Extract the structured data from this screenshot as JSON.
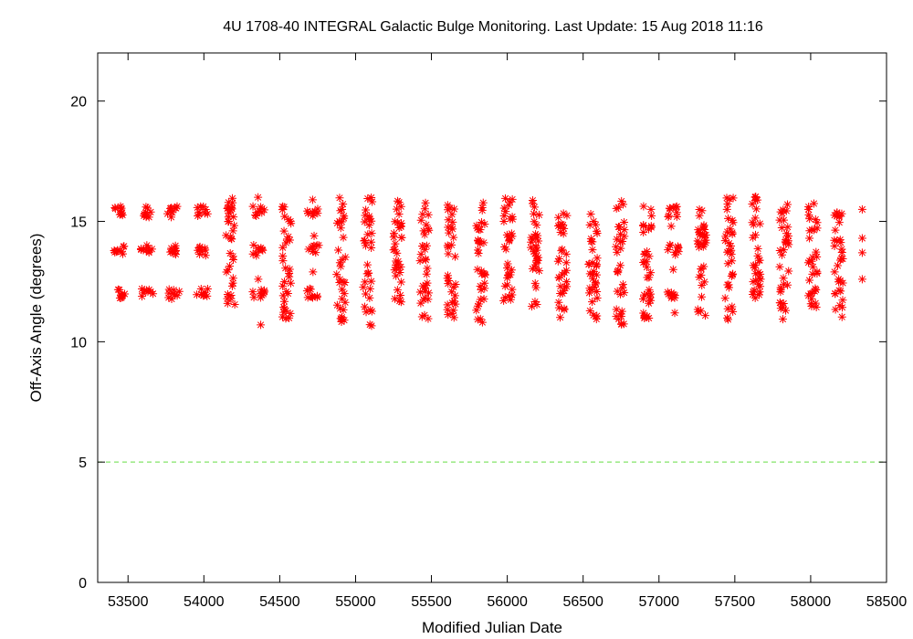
{
  "chart_data": {
    "type": "scatter",
    "title": "4U 1708-40   INTEGRAL Galactic Bulge Monitoring.  Last Update: 15 Aug 2018 11:16",
    "xlabel": "Modified Julian Date",
    "ylabel": "Off-Axis Angle (degrees)",
    "xlim": [
      53300,
      58500
    ],
    "ylim": [
      0,
      22
    ],
    "xticks": [
      53500,
      54000,
      54500,
      55000,
      55500,
      56000,
      56500,
      57000,
      57500,
      58000,
      58500
    ],
    "yticks": [
      0,
      5,
      10,
      15,
      20
    ],
    "grid": false,
    "legend": "none",
    "marker": "asterisk",
    "series_color": "#ff0000",
    "reference_line": {
      "y": 5,
      "color": "#66dd44",
      "style": "dashed"
    },
    "visit_groups": [
      {
        "mjd": 53440,
        "levels": [
          15.4,
          13.8,
          12.0
        ],
        "kind": "raster"
      },
      {
        "mjd": 53625,
        "levels": [
          15.4,
          13.8,
          12.0
        ],
        "kind": "raster"
      },
      {
        "mjd": 53800,
        "levels": [
          15.4,
          13.8,
          12.0
        ],
        "kind": "raster"
      },
      {
        "mjd": 53990,
        "levels": [
          15.4,
          13.8,
          12.0
        ],
        "kind": "raster"
      },
      {
        "mjd": 54170,
        "min": 11.4,
        "max": 16.0,
        "kind": "scatter"
      },
      {
        "mjd": 54360,
        "levels": [
          15.4,
          13.8,
          12.0
        ],
        "kind": "raster",
        "extra": [
          10.7,
          16.0,
          12.6
        ]
      },
      {
        "mjd": 54540,
        "min": 10.9,
        "max": 16.0,
        "kind": "scatter"
      },
      {
        "mjd": 54720,
        "levels": [
          15.4,
          13.8,
          12.0
        ],
        "kind": "raster",
        "extra": [
          15.9,
          14.4,
          12.9
        ]
      },
      {
        "mjd": 54900,
        "min": 10.8,
        "max": 16.1,
        "kind": "scatter"
      },
      {
        "mjd": 55075,
        "min": 10.6,
        "max": 16.0,
        "kind": "scatter"
      },
      {
        "mjd": 55270,
        "min": 11.4,
        "max": 16.0,
        "kind": "scatter"
      },
      {
        "mjd": 55450,
        "min": 10.9,
        "max": 16.1,
        "kind": "scatter"
      },
      {
        "mjd": 55630,
        "min": 11.0,
        "max": 16.1,
        "kind": "scatter"
      },
      {
        "mjd": 55820,
        "min": 10.7,
        "max": 16.0,
        "kind": "scatter"
      },
      {
        "mjd": 56000,
        "min": 11.5,
        "max": 16.1,
        "kind": "scatter"
      },
      {
        "mjd": 56180,
        "min": 11.3,
        "max": 16.0,
        "kind": "scatter"
      },
      {
        "mjd": 56360,
        "min": 11.0,
        "max": 15.5,
        "kind": "scatter"
      },
      {
        "mjd": 56560,
        "min": 10.7,
        "max": 15.5,
        "kind": "scatter"
      },
      {
        "mjd": 56740,
        "min": 10.7,
        "max": 16.0,
        "kind": "scatter"
      },
      {
        "mjd": 56920,
        "min": 10.9,
        "max": 15.9,
        "kind": "scatter"
      },
      {
        "mjd": 57090,
        "levels": [
          15.4,
          13.8,
          12.0
        ],
        "kind": "raster",
        "extra": [
          13.0,
          11.2,
          14.8
        ]
      },
      {
        "mjd": 57280,
        "min": 10.7,
        "max": 15.5,
        "kind": "scatter"
      },
      {
        "mjd": 57460,
        "min": 10.9,
        "max": 16.0,
        "kind": "scatter"
      },
      {
        "mjd": 57640,
        "min": 11.3,
        "max": 16.1,
        "kind": "scatter"
      },
      {
        "mjd": 57820,
        "min": 10.7,
        "max": 16.0,
        "kind": "scatter"
      },
      {
        "mjd": 58010,
        "min": 11.3,
        "max": 15.9,
        "kind": "scatter"
      },
      {
        "mjd": 58180,
        "min": 10.8,
        "max": 15.5,
        "kind": "scatter"
      },
      {
        "mjd": 58340,
        "points": [
          15.5,
          14.3,
          13.7,
          12.6
        ],
        "kind": "points"
      }
    ]
  }
}
